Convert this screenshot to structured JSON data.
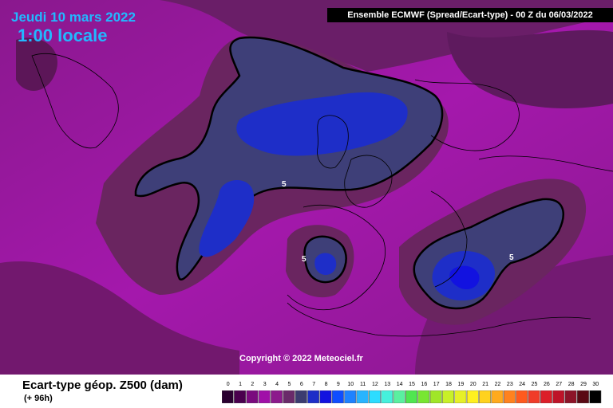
{
  "header": {
    "date": "Jeudi 10 mars 2022",
    "hour": "1:00 locale",
    "info": "Ensemble ECMWF  (Spread/Ecart-type) - 00 Z du 06/03/2022"
  },
  "copyright": "Copyright © 2022 Meteociel.fr",
  "contour_labels": [
    "5",
    "5",
    "5"
  ],
  "footer": {
    "title": "Ecart-type géop. Z500 (dam)",
    "subtitle": "(+ 96h)"
  },
  "scale": {
    "labels": [
      "0",
      "1",
      "2",
      "3",
      "4",
      "5",
      "6",
      "7",
      "8",
      "9",
      "10",
      "11",
      "12",
      "13",
      "14",
      "15",
      "16",
      "17",
      "18",
      "19",
      "20",
      "21",
      "22",
      "23",
      "24",
      "25",
      "26",
      "27",
      "28",
      "29",
      "30"
    ],
    "colors": [
      "#2a0030",
      "#4a004e",
      "#7a0a7e",
      "#a010a8",
      "#8c1a8c",
      "#6a2a6a",
      "#3c3c70",
      "#1e2ec8",
      "#1212e0",
      "#0f4dff",
      "#1e82ff",
      "#28b4ff",
      "#2ddcff",
      "#46f0dc",
      "#5af0a0",
      "#50e650",
      "#78e632",
      "#a0e628",
      "#c8f028",
      "#e6f028",
      "#fff020",
      "#ffd21e",
      "#ffaa1e",
      "#ff821e",
      "#ff5a1e",
      "#f03c28",
      "#dc1e28",
      "#be1428",
      "#8c1428",
      "#5a0a14",
      "#000000"
    ]
  }
}
